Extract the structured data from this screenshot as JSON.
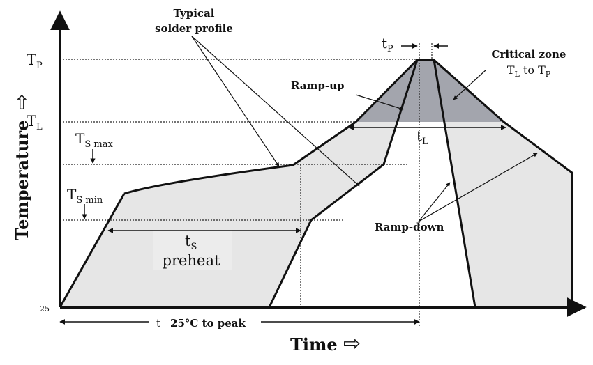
{
  "labels": {
    "tp": "T",
    "tp_sub": "P",
    "tl": "T",
    "tl_sub": "L",
    "ts_max": "T",
    "ts_max_sub": "S max",
    "ts_min": "T",
    "ts_min_sub": "S min",
    "t25": "25",
    "y_axis_title": "Temperature",
    "x_axis_title": "Time",
    "typical_1": "Typical",
    "typical_2": "solder profile",
    "critical_1": "Critical zone",
    "critical_2a": "T",
    "critical_2a_sub": "L",
    "critical_2b": " to T",
    "critical_2b_sub": "P",
    "ramp_up": "Ramp-up",
    "ramp_down": "Ramp-down",
    "t_peak": "t",
    "t_peak_sub": "P",
    "t_l": "t",
    "t_l_sub": "L",
    "t_s": "t",
    "t_s_sub": "S",
    "preheat": "preheat",
    "t_25_prefix": "t",
    "t_25_suffix": "25°C to peak"
  },
  "colors": {
    "band_fill": "#e6e6e6",
    "critical_fill": "#a3a5ad",
    "line": "#111111",
    "preheat_box": "#ececec"
  }
}
